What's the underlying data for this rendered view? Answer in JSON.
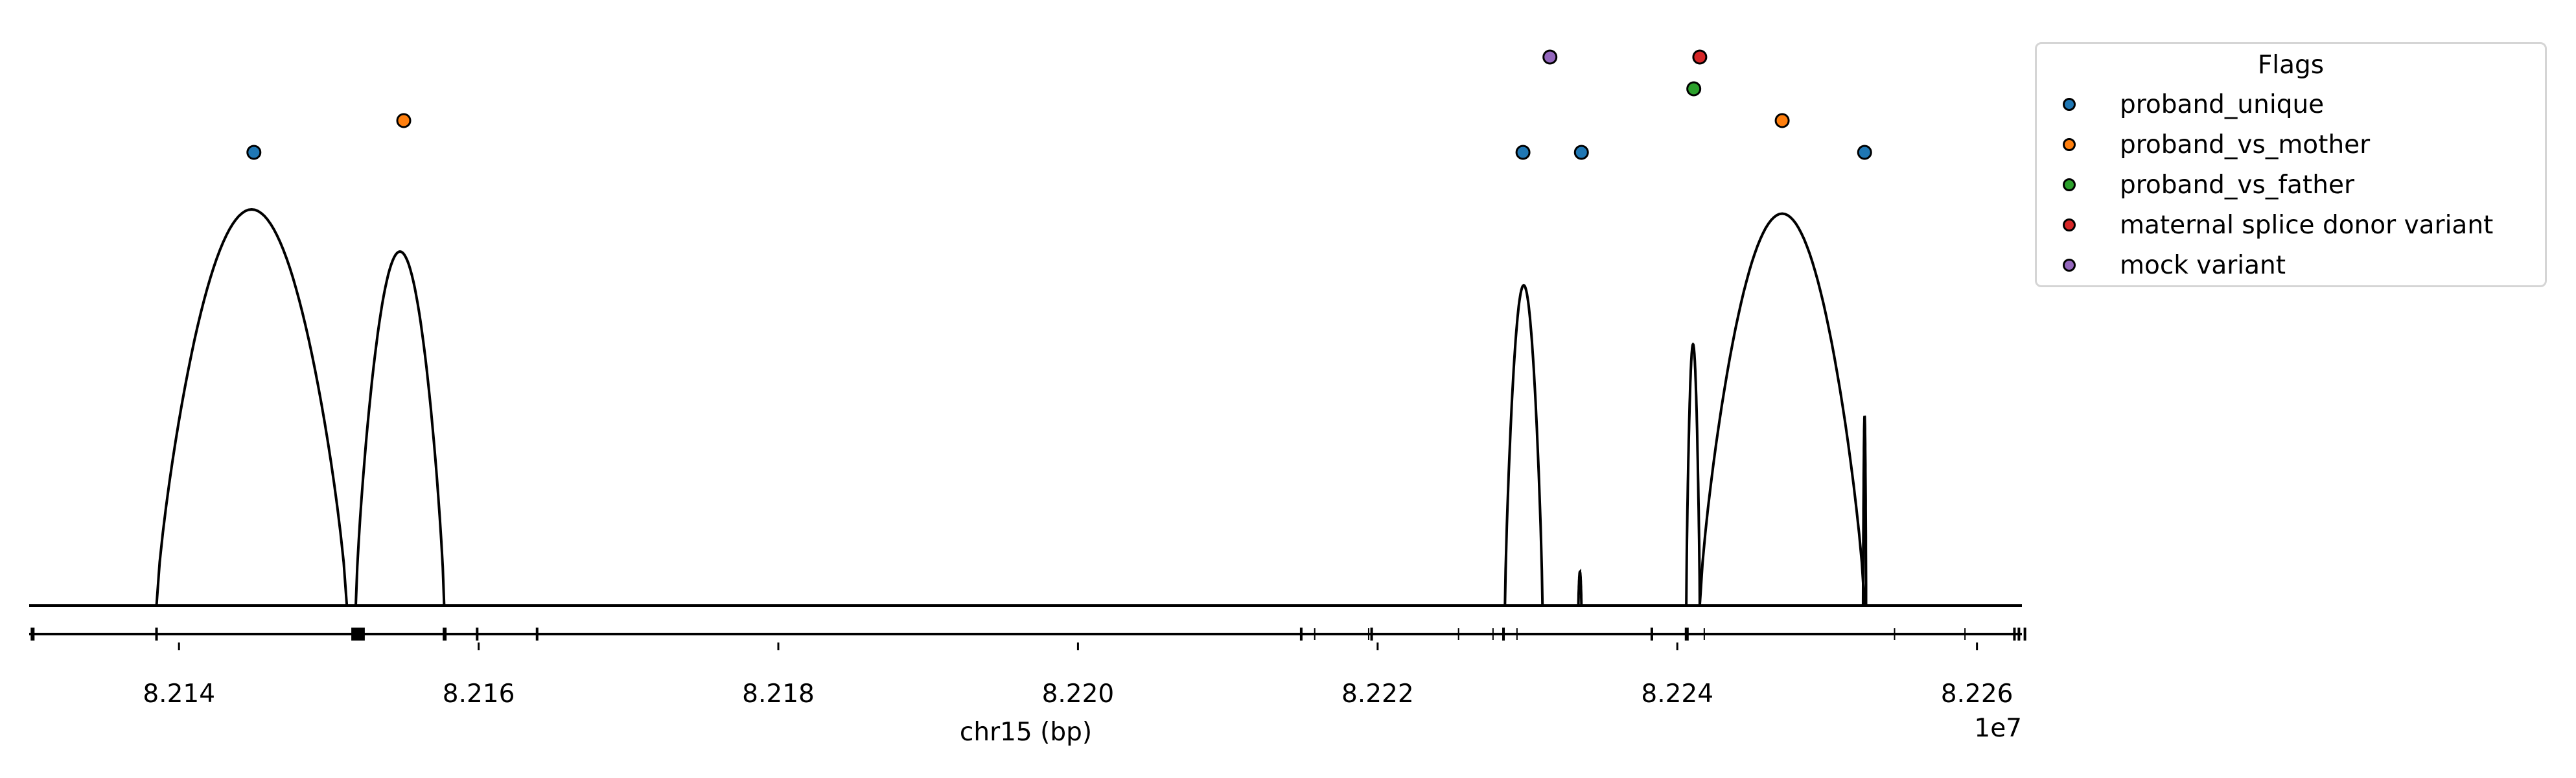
{
  "chart_data": {
    "type": "scatter",
    "xlabel": "chr15 (bp)",
    "x_offset_label": "1e7",
    "xlim": [
      8.213,
      8.2263
    ],
    "xticks": [
      "8.214",
      "8.216",
      "8.218",
      "8.220",
      "8.222",
      "8.224",
      "8.226"
    ],
    "xtick_values": [
      8.214,
      8.216,
      8.218,
      8.22,
      8.222,
      8.224,
      8.226
    ],
    "legend": {
      "title": "Flags",
      "placement": "upper-right-outside",
      "entries": [
        {
          "name": "proband_unique",
          "color": "#1f77b4"
        },
        {
          "name": "proband_vs_mother",
          "color": "#ff7f0e"
        },
        {
          "name": "proband_vs_father",
          "color": "#2ca02c"
        },
        {
          "name": "maternal splice donor variant",
          "color": "#d62728"
        },
        {
          "name": "mock variant",
          "color": "#9467bd"
        }
      ]
    },
    "points": [
      {
        "x": 8.2145,
        "level": 0,
        "flag": "proband_unique"
      },
      {
        "x": 8.2155,
        "level": 1,
        "flag": "proband_vs_mother"
      },
      {
        "x": 8.22297,
        "level": 0,
        "flag": "proband_unique"
      },
      {
        "x": 8.22315,
        "level": 3,
        "flag": "mock variant"
      },
      {
        "x": 8.22336,
        "level": 0,
        "flag": "proband_unique"
      },
      {
        "x": 8.22411,
        "level": 2,
        "flag": "proband_vs_father"
      },
      {
        "x": 8.22415,
        "level": 3,
        "flag": "maternal splice donor variant"
      },
      {
        "x": 8.2247,
        "level": 1,
        "flag": "proband_vs_mother"
      },
      {
        "x": 8.22525,
        "level": 0,
        "flag": "proband_unique"
      }
    ],
    "coverage_arcs": [
      {
        "start": 8.21385,
        "end": 8.21512,
        "peak": 0.94
      },
      {
        "start": 8.21518,
        "end": 8.21577,
        "peak": 0.84
      },
      {
        "start": 8.22285,
        "end": 8.2231,
        "peak": 0.76
      },
      {
        "start": 8.22334,
        "end": 8.22336,
        "peak": 0.08
      },
      {
        "start": 8.22406,
        "end": 8.22415,
        "peak": 0.62
      },
      {
        "start": 8.22415,
        "end": 8.22525,
        "peak": 0.93
      },
      {
        "start": 8.22524,
        "end": 8.22526,
        "peak": 0.45
      }
    ],
    "gene_track": {
      "line": [
        8.213,
        8.2263
      ],
      "exons": [
        {
          "start": 8.21301,
          "end": 8.21303
        },
        {
          "start": 8.21515,
          "end": 8.21524
        },
        {
          "start": 8.21576,
          "end": 8.21578
        },
        {
          "start": 8.22405,
          "end": 8.22407
        }
      ],
      "ticks_major": [
        8.21385,
        8.21599,
        8.21639,
        8.22149,
        8.22196,
        8.22284,
        8.22383,
        8.22625,
        8.22628,
        8.22632
      ],
      "ticks_minor": [
        8.22158,
        8.22194,
        8.22254,
        8.22277,
        8.22293,
        8.22418,
        8.22545,
        8.22592
      ]
    }
  }
}
